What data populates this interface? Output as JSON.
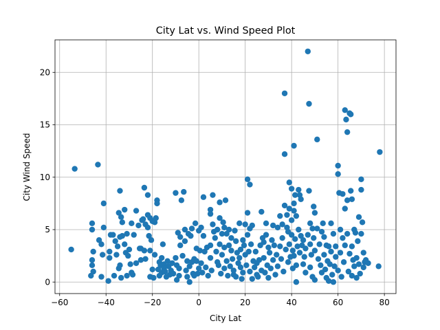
{
  "chart_data": {
    "type": "scatter",
    "title": "City Lat vs. Wind Speed Plot",
    "xlabel": "City Lat",
    "ylabel": "City Wind Speed",
    "xlim": [
      -62,
      85
    ],
    "ylim": [
      -1.1,
      23.1
    ],
    "xticks": [
      -60,
      -40,
      -20,
      0,
      20,
      40,
      60,
      80
    ],
    "yticks": [
      0,
      5,
      10,
      15,
      20
    ],
    "grid": true,
    "marker_color": "#1f77b4",
    "points": [
      [
        -55,
        3.1
      ],
      [
        -53.5,
        10.8
      ],
      [
        -43.5,
        11.2
      ],
      [
        -41,
        7.5
      ],
      [
        -46,
        5.6
      ],
      [
        -46,
        5.0
      ],
      [
        -46,
        2.1
      ],
      [
        -46,
        1.6
      ],
      [
        -46.5,
        0.6
      ],
      [
        -45.5,
        1.0
      ],
      [
        -45.5,
        2.9
      ],
      [
        -43,
        4.0
      ],
      [
        -42,
        3.6
      ],
      [
        -42,
        0.5
      ],
      [
        -41,
        5.2
      ],
      [
        -41.5,
        2.6
      ],
      [
        -39,
        0.1
      ],
      [
        -38,
        4.5
      ],
      [
        -38.5,
        2.9
      ],
      [
        -38.5,
        2.3
      ],
      [
        -37,
        4.5
      ],
      [
        -36.5,
        0.6
      ],
      [
        -36,
        3.9
      ],
      [
        -35.5,
        2.6
      ],
      [
        -35,
        3.4
      ],
      [
        -34.5,
        6.6
      ],
      [
        -34,
        8.7
      ],
      [
        -33.5,
        6.2
      ],
      [
        -33,
        5.7
      ],
      [
        -34,
        4.3
      ],
      [
        -34.5,
        1.3
      ],
      [
        -34,
        1.6
      ],
      [
        -33.5,
        0.4
      ],
      [
        -33,
        4.4
      ],
      [
        -32,
        6.9
      ],
      [
        -32,
        3.6
      ],
      [
        -31.5,
        2.8
      ],
      [
        -31,
        4.6
      ],
      [
        -30.5,
        2.5
      ],
      [
        -31,
        0.6
      ],
      [
        -30,
        3.1
      ],
      [
        -29.5,
        1.7
      ],
      [
        -29,
        5.6
      ],
      [
        -29,
        0.9
      ],
      [
        -28.5,
        0.7
      ],
      [
        -28,
        4.5
      ],
      [
        -27,
        6.8
      ],
      [
        -27,
        1.8
      ],
      [
        -26,
        5.4
      ],
      [
        -25.5,
        3.2
      ],
      [
        -25,
        3.2
      ],
      [
        -25,
        2.1
      ],
      [
        -24.5,
        5.9
      ],
      [
        -24,
        6.0
      ],
      [
        -23.5,
        9.0
      ],
      [
        -23,
        5.5
      ],
      [
        -23.5,
        3.0
      ],
      [
        -23,
        2.2
      ],
      [
        -22,
        8.3
      ],
      [
        -22,
        6.4
      ],
      [
        -22,
        5.2
      ],
      [
        -21.5,
        4.4
      ],
      [
        -21,
        6.1
      ],
      [
        -21,
        3.0
      ],
      [
        -21,
        0.5
      ],
      [
        -20.5,
        4.0
      ],
      [
        -20,
        5.8
      ],
      [
        -20,
        1.2
      ],
      [
        -19.5,
        0.4
      ],
      [
        -19,
        5.7
      ],
      [
        -19,
        2.6
      ],
      [
        -18.5,
        6.1
      ],
      [
        -18,
        7.8
      ],
      [
        -18,
        7.5
      ],
      [
        -17.5,
        1.2
      ],
      [
        -17,
        1.9
      ],
      [
        -17,
        0.6
      ],
      [
        -16.5,
        1.6
      ],
      [
        -16,
        0.9
      ],
      [
        -16,
        2.3
      ],
      [
        -15.5,
        3.6
      ],
      [
        -15,
        1.7
      ],
      [
        -15,
        1.3
      ],
      [
        -14.5,
        1.0
      ],
      [
        -14,
        0.5
      ],
      [
        -13.5,
        2.0
      ],
      [
        -13,
        1.5
      ],
      [
        -12.5,
        0.7
      ],
      [
        -12,
        1.1
      ],
      [
        -11.5,
        1.8
      ],
      [
        -11,
        0.8
      ],
      [
        -10,
        8.5
      ],
      [
        -10,
        2.3
      ],
      [
        -9.5,
        1.6
      ],
      [
        -9.5,
        0.2
      ],
      [
        -9,
        4.7
      ],
      [
        -8.5,
        1.3
      ],
      [
        -8.5,
        0.6
      ],
      [
        -8,
        4.3
      ],
      [
        -8,
        3.5
      ],
      [
        -7.5,
        7.8
      ],
      [
        -7,
        2.5
      ],
      [
        -6.5,
        8.6
      ],
      [
        -6,
        3.9
      ],
      [
        -6,
        5.0
      ],
      [
        -5.5,
        1.1
      ],
      [
        -5,
        2.0
      ],
      [
        -5,
        0.5
      ],
      [
        -4.5,
        4.6
      ],
      [
        -4,
        0.0
      ],
      [
        -4,
        1.5
      ],
      [
        -3.5,
        4.4
      ],
      [
        -3,
        5.1
      ],
      [
        -3,
        1.9
      ],
      [
        -2.5,
        0.8
      ],
      [
        -2,
        2.2
      ],
      [
        -2,
        0.6
      ],
      [
        -1.5,
        5.6
      ],
      [
        -1,
        3.2
      ],
      [
        -1,
        2.0
      ],
      [
        -0.5,
        0.8
      ],
      [
        0,
        4.9
      ],
      [
        0,
        1.3
      ],
      [
        0.5,
        3.0
      ],
      [
        1,
        5.2
      ],
      [
        1,
        1.8
      ],
      [
        1.5,
        0.9
      ],
      [
        2,
        4.4
      ],
      [
        2,
        8.1
      ],
      [
        2.5,
        2.9
      ],
      [
        3,
        1.4
      ],
      [
        3.5,
        3.3
      ],
      [
        4,
        0.6
      ],
      [
        5,
        6.9
      ],
      [
        5,
        6.5
      ],
      [
        5,
        3.5
      ],
      [
        5,
        2.3
      ],
      [
        5.5,
        1.1
      ],
      [
        6,
        8.3
      ],
      [
        6,
        5.5
      ],
      [
        6.5,
        4.8
      ],
      [
        7,
        4.2
      ],
      [
        7.5,
        2.9
      ],
      [
        8,
        5.0
      ],
      [
        8,
        1.9
      ],
      [
        8.5,
        1.6
      ],
      [
        9,
        7.6
      ],
      [
        9,
        6.1
      ],
      [
        9,
        3.6
      ],
      [
        9.5,
        0.8
      ],
      [
        10,
        4.6
      ],
      [
        10,
        2.6
      ],
      [
        10.5,
        5.7
      ],
      [
        11,
        5.2
      ],
      [
        11,
        3.3
      ],
      [
        11,
        1.3
      ],
      [
        11.5,
        7.8
      ],
      [
        12,
        4.6
      ],
      [
        12,
        2.0
      ],
      [
        12.5,
        0.6
      ],
      [
        13,
        3.5
      ],
      [
        13,
        5.0
      ],
      [
        13.5,
        1.5
      ],
      [
        14,
        3.0
      ],
      [
        14,
        4.2
      ],
      [
        14.5,
        2.2
      ],
      [
        15,
        1.1
      ],
      [
        15,
        0.7
      ],
      [
        15.5,
        4.9
      ],
      [
        16,
        3.9
      ],
      [
        16,
        0.5
      ],
      [
        16.5,
        2.8
      ],
      [
        17,
        1.8
      ],
      [
        17.5,
        5.6
      ],
      [
        17.5,
        2.3
      ],
      [
        18,
        3.1
      ],
      [
        18,
        1.4
      ],
      [
        18.5,
        0.3
      ],
      [
        19,
        4.0
      ],
      [
        19,
        0.9
      ],
      [
        19.5,
        3.5
      ],
      [
        20,
        5.5
      ],
      [
        20,
        2.6
      ],
      [
        20.5,
        1.6
      ],
      [
        21,
        9.8
      ],
      [
        21,
        6.6
      ],
      [
        21,
        4.5
      ],
      [
        21.5,
        2.9
      ],
      [
        22,
        5.1
      ],
      [
        22,
        9.3
      ],
      [
        22,
        1.0
      ],
      [
        22.5,
        3.6
      ],
      [
        23,
        5.4
      ],
      [
        23,
        0.3
      ],
      [
        23.5,
        2.0
      ],
      [
        24,
        1.4
      ],
      [
        24.5,
        2.9
      ],
      [
        25,
        1.8
      ],
      [
        25,
        0.7
      ],
      [
        25.5,
        0.5
      ],
      [
        26,
        2.1
      ],
      [
        26.5,
        3.5
      ],
      [
        27,
        1.1
      ],
      [
        27,
        6.7
      ],
      [
        27.5,
        4.2
      ],
      [
        28,
        3.8
      ],
      [
        28,
        2.3
      ],
      [
        28.5,
        0.9
      ],
      [
        29,
        4.5
      ],
      [
        29,
        5.6
      ],
      [
        29.5,
        1.6
      ],
      [
        30,
        3.3
      ],
      [
        30,
        0.4
      ],
      [
        30.5,
        2.8
      ],
      [
        31,
        1.3
      ],
      [
        31.5,
        4.0
      ],
      [
        32,
        2.1
      ],
      [
        32,
        5.4
      ],
      [
        32.5,
        3.5
      ],
      [
        33,
        0.7
      ],
      [
        33.5,
        2.6
      ],
      [
        34,
        5.2
      ],
      [
        34,
        1.5
      ],
      [
        35,
        3.4
      ],
      [
        35,
        6.3
      ],
      [
        35.5,
        2.2
      ],
      [
        36,
        5.5
      ],
      [
        36,
        4.2
      ],
      [
        36.5,
        1.0
      ],
      [
        37,
        12.2
      ],
      [
        37,
        18.0
      ],
      [
        37,
        7.3
      ],
      [
        37.5,
        3.1
      ],
      [
        38,
        6.4
      ],
      [
        38,
        5.2
      ],
      [
        38.5,
        4.8
      ],
      [
        38.5,
        1.9
      ],
      [
        39,
        9.5
      ],
      [
        39,
        7.0
      ],
      [
        39,
        3.6
      ],
      [
        39.5,
        2.4
      ],
      [
        40,
        8.9
      ],
      [
        40,
        5.9
      ],
      [
        40,
        4.5
      ],
      [
        40.5,
        3.0
      ],
      [
        40.5,
        1.3
      ],
      [
        41,
        13.0
      ],
      [
        41,
        7.5
      ],
      [
        41,
        6.8
      ],
      [
        41,
        2.5
      ],
      [
        41.5,
        8.3
      ],
      [
        41.5,
        4.1
      ],
      [
        42,
        6.3
      ],
      [
        42,
        1.6
      ],
      [
        42,
        0.0
      ],
      [
        42.5,
        3.4
      ],
      [
        43,
        8.8
      ],
      [
        43,
        5.0
      ],
      [
        43.5,
        8.3
      ],
      [
        43.5,
        2.8
      ],
      [
        44,
        7.9
      ],
      [
        44,
        4.4
      ],
      [
        44.5,
        3.5
      ],
      [
        45,
        1.7
      ],
      [
        45,
        4.0
      ],
      [
        45.5,
        2.4
      ],
      [
        46,
        3.2
      ],
      [
        46,
        0.9
      ],
      [
        47,
        22.0
      ],
      [
        47,
        4.5
      ],
      [
        47.5,
        17.0
      ],
      [
        47.5,
        8.7
      ],
      [
        48,
        5.6
      ],
      [
        48,
        3.6
      ],
      [
        48,
        1.4
      ],
      [
        48.5,
        2.6
      ],
      [
        49,
        5.1
      ],
      [
        49,
        0.5
      ],
      [
        49.5,
        7.2
      ],
      [
        49.5,
        4.2
      ],
      [
        50,
        6.6
      ],
      [
        50,
        3.0
      ],
      [
        50,
        0.2
      ],
      [
        51,
        13.6
      ],
      [
        51,
        5.1
      ],
      [
        51.5,
        2.2
      ],
      [
        52,
        3.6
      ],
      [
        52.5,
        1.6
      ],
      [
        53,
        4.8
      ],
      [
        53,
        0.9
      ],
      [
        53.5,
        5.6
      ],
      [
        54,
        2.6
      ],
      [
        54,
        4.3
      ],
      [
        54.5,
        1.2
      ],
      [
        55,
        3.5
      ],
      [
        55,
        0.4
      ],
      [
        55.5,
        2.0
      ],
      [
        56,
        3.4
      ],
      [
        56,
        0.1
      ],
      [
        56.5,
        1.7
      ],
      [
        57,
        5.6
      ],
      [
        57,
        2.9
      ],
      [
        57.5,
        0.7
      ],
      [
        58,
        4.6
      ],
      [
        58,
        0.0
      ],
      [
        58.5,
        1.5
      ],
      [
        59,
        2.4
      ],
      [
        59,
        3.4
      ],
      [
        60,
        11.1
      ],
      [
        60,
        10.3
      ],
      [
        60,
        1.1
      ],
      [
        60.5,
        8.5
      ],
      [
        61,
        5.0
      ],
      [
        61,
        2.8
      ],
      [
        61.5,
        0.5
      ],
      [
        62,
        8.4
      ],
      [
        62,
        4.2
      ],
      [
        62.5,
        1.9
      ],
      [
        63,
        16.4
      ],
      [
        63,
        7.0
      ],
      [
        63,
        3.5
      ],
      [
        63.5,
        15.5
      ],
      [
        64,
        14.3
      ],
      [
        64,
        7.8
      ],
      [
        64,
        4.6
      ],
      [
        64.5,
        1.0
      ],
      [
        65,
        16.1
      ],
      [
        65,
        2.7
      ],
      [
        65.5,
        8.7
      ],
      [
        65.5,
        16.0
      ],
      [
        66,
        7.9
      ],
      [
        66,
        3.4
      ],
      [
        66,
        0.6
      ],
      [
        66.5,
        2.1
      ],
      [
        67,
        5.0
      ],
      [
        67,
        1.5
      ],
      [
        67.5,
        4.7
      ],
      [
        68,
        2.3
      ],
      [
        68,
        0.4
      ],
      [
        68.5,
        3.9
      ],
      [
        69,
        1.7
      ],
      [
        69,
        6.2
      ],
      [
        69.5,
        0.8
      ],
      [
        70,
        9.8
      ],
      [
        70,
        8.8
      ],
      [
        70,
        4.6
      ],
      [
        70.5,
        5.7
      ],
      [
        71,
        2.8
      ],
      [
        71,
        1.4
      ],
      [
        71.5,
        1.9
      ],
      [
        72,
        2.1
      ],
      [
        73,
        1.8
      ],
      [
        77.5,
        1.5
      ],
      [
        78,
        12.4
      ]
    ]
  }
}
